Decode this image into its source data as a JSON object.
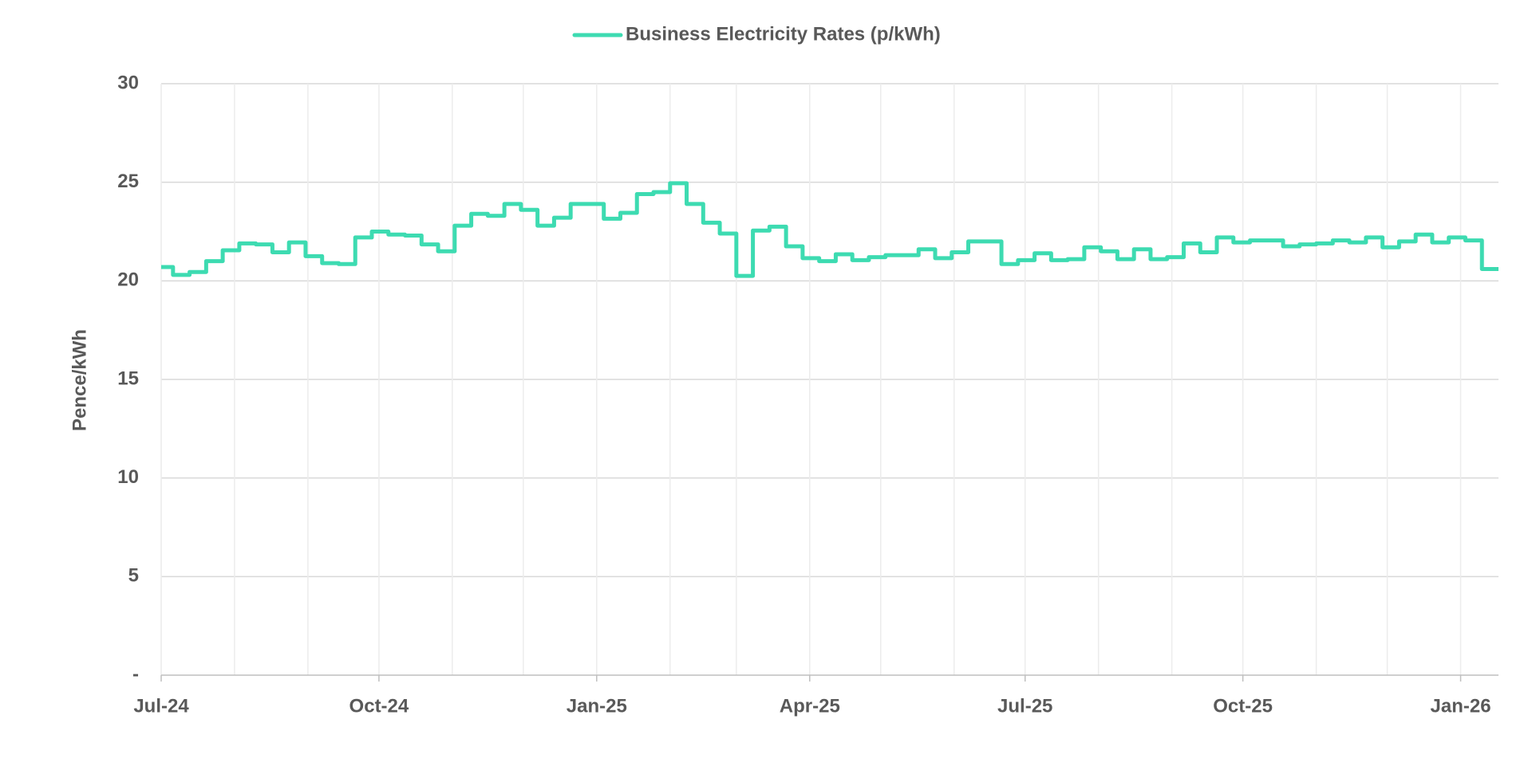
{
  "chart_data": {
    "type": "line",
    "step": true,
    "legend": "top",
    "y_label": "Pence/kWh",
    "xlim": [
      0,
      565
    ],
    "xticks": [
      {
        "value": 0,
        "label": "Jul-24"
      },
      {
        "value": 92,
        "label": "Oct-24"
      },
      {
        "value": 184,
        "label": "Jan-25"
      },
      {
        "value": 274,
        "label": "Apr-25"
      },
      {
        "value": 365,
        "label": "Jul-25"
      },
      {
        "value": 457,
        "label": "Oct-25"
      },
      {
        "value": 549,
        "label": "Jan-26"
      }
    ],
    "xminor": [
      31,
      62,
      123,
      153,
      215,
      243,
      304,
      335,
      396,
      427,
      488,
      518
    ],
    "ylim": [
      0,
      30
    ],
    "yticks": [
      {
        "value": 0,
        "label": "-"
      },
      5,
      10,
      15,
      20,
      25,
      30
    ],
    "grid": true,
    "x": [
      0,
      5,
      12,
      19,
      26,
      33,
      40,
      47,
      54,
      61,
      68,
      75,
      82,
      89,
      96,
      103,
      110,
      117,
      124,
      131,
      138,
      145,
      152,
      159,
      166,
      173,
      180,
      187,
      194,
      201,
      208,
      215,
      222,
      229,
      236,
      243,
      250,
      257,
      264,
      271,
      278,
      285,
      292,
      299,
      306,
      313,
      320,
      327,
      334,
      341,
      348,
      355,
      362,
      369,
      376,
      383,
      390,
      397,
      404,
      411,
      418,
      425,
      432,
      439,
      446,
      453,
      460,
      467,
      474,
      481,
      488,
      495,
      502,
      509,
      516,
      523,
      530,
      537,
      544,
      551,
      558
    ],
    "series": [
      {
        "name": "Business Electricity Rates (p/kWh)",
        "color": "#3ddbb1",
        "values": [
          20.7,
          20.3,
          20.45,
          21.0,
          21.55,
          21.9,
          21.85,
          21.45,
          21.95,
          21.25,
          20.9,
          20.85,
          22.2,
          22.5,
          22.35,
          22.3,
          21.85,
          21.5,
          22.8,
          23.4,
          23.3,
          23.9,
          23.6,
          22.8,
          23.2,
          23.9,
          23.9,
          23.15,
          23.45,
          24.4,
          24.5,
          24.95,
          23.9,
          22.95,
          22.4,
          20.25,
          22.55,
          22.75,
          21.75,
          21.15,
          21.0,
          21.35,
          21.05,
          21.2,
          21.3,
          21.3,
          21.6,
          21.15,
          21.45,
          22.0,
          22.0,
          20.85,
          21.05,
          21.4,
          21.05,
          21.1,
          21.7,
          21.5,
          21.1,
          21.6,
          21.1,
          21.2,
          21.9,
          21.45,
          22.2,
          21.95,
          22.05,
          22.05,
          21.75,
          21.85,
          21.9,
          22.05,
          21.95,
          22.2,
          21.7,
          22.0,
          22.35,
          21.95,
          22.2,
          22.05,
          20.6
        ]
      }
    ]
  }
}
